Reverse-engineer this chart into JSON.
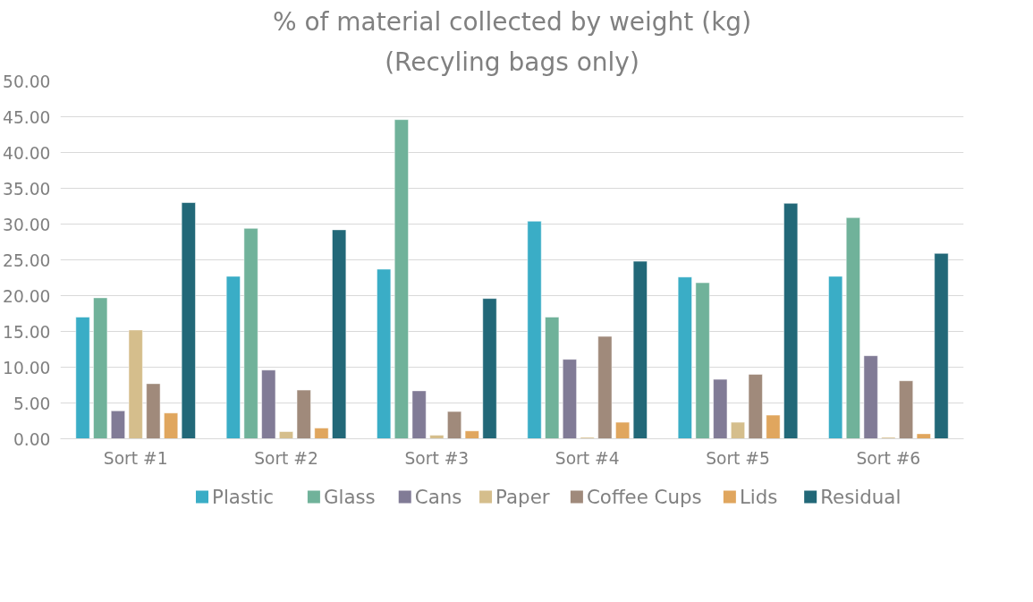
{
  "chart_data": {
    "type": "bar",
    "title": "% of material collected by weight (kg)",
    "subtitle": "(Recyling bags only)",
    "categories": [
      "Sort #1",
      "Sort #2",
      "Sort #3",
      "Sort #4",
      "Sort #5",
      "Sort #6"
    ],
    "series": [
      {
        "name": "Plastic",
        "color": "#3aadc6",
        "values": [
          17.0,
          22.7,
          23.7,
          30.4,
          22.6,
          22.7
        ]
      },
      {
        "name": "Glass",
        "color": "#70b29a",
        "values": [
          19.7,
          29.4,
          44.6,
          17.0,
          21.8,
          30.9
        ]
      },
      {
        "name": "Cans",
        "color": "#817b96",
        "values": [
          3.9,
          9.6,
          6.7,
          11.1,
          8.3,
          11.6
        ]
      },
      {
        "name": "Paper",
        "color": "#d5be8c",
        "values": [
          15.2,
          1.0,
          0.5,
          0.2,
          2.3,
          0.2
        ]
      },
      {
        "name": "Coffee Cups",
        "color": "#a08a7b",
        "values": [
          7.7,
          6.8,
          3.8,
          14.3,
          9.0,
          8.1
        ]
      },
      {
        "name": "Lids",
        "color": "#e0a65e",
        "values": [
          3.6,
          1.5,
          1.1,
          2.3,
          3.3,
          0.7
        ]
      },
      {
        "name": "Residual",
        "color": "#226878",
        "values": [
          33.0,
          29.2,
          19.6,
          24.8,
          32.9,
          25.9
        ]
      }
    ],
    "ylim": [
      0,
      50
    ],
    "yticks": [
      {
        "value": 0,
        "label": "0.00"
      },
      {
        "value": 5,
        "label": "5.00"
      },
      {
        "value": 10,
        "label": "10.00"
      },
      {
        "value": 15,
        "label": "15.00"
      },
      {
        "value": 20,
        "label": "20.00"
      },
      {
        "value": 25,
        "label": "25.00"
      },
      {
        "value": 30,
        "label": "30.00"
      },
      {
        "value": 35,
        "label": "35.00"
      },
      {
        "value": 40,
        "label": "40.00"
      },
      {
        "value": 45,
        "label": "45.00"
      },
      {
        "value": 50,
        "label": "50.00"
      }
    ],
    "grid": "y",
    "legend": "bottom"
  }
}
